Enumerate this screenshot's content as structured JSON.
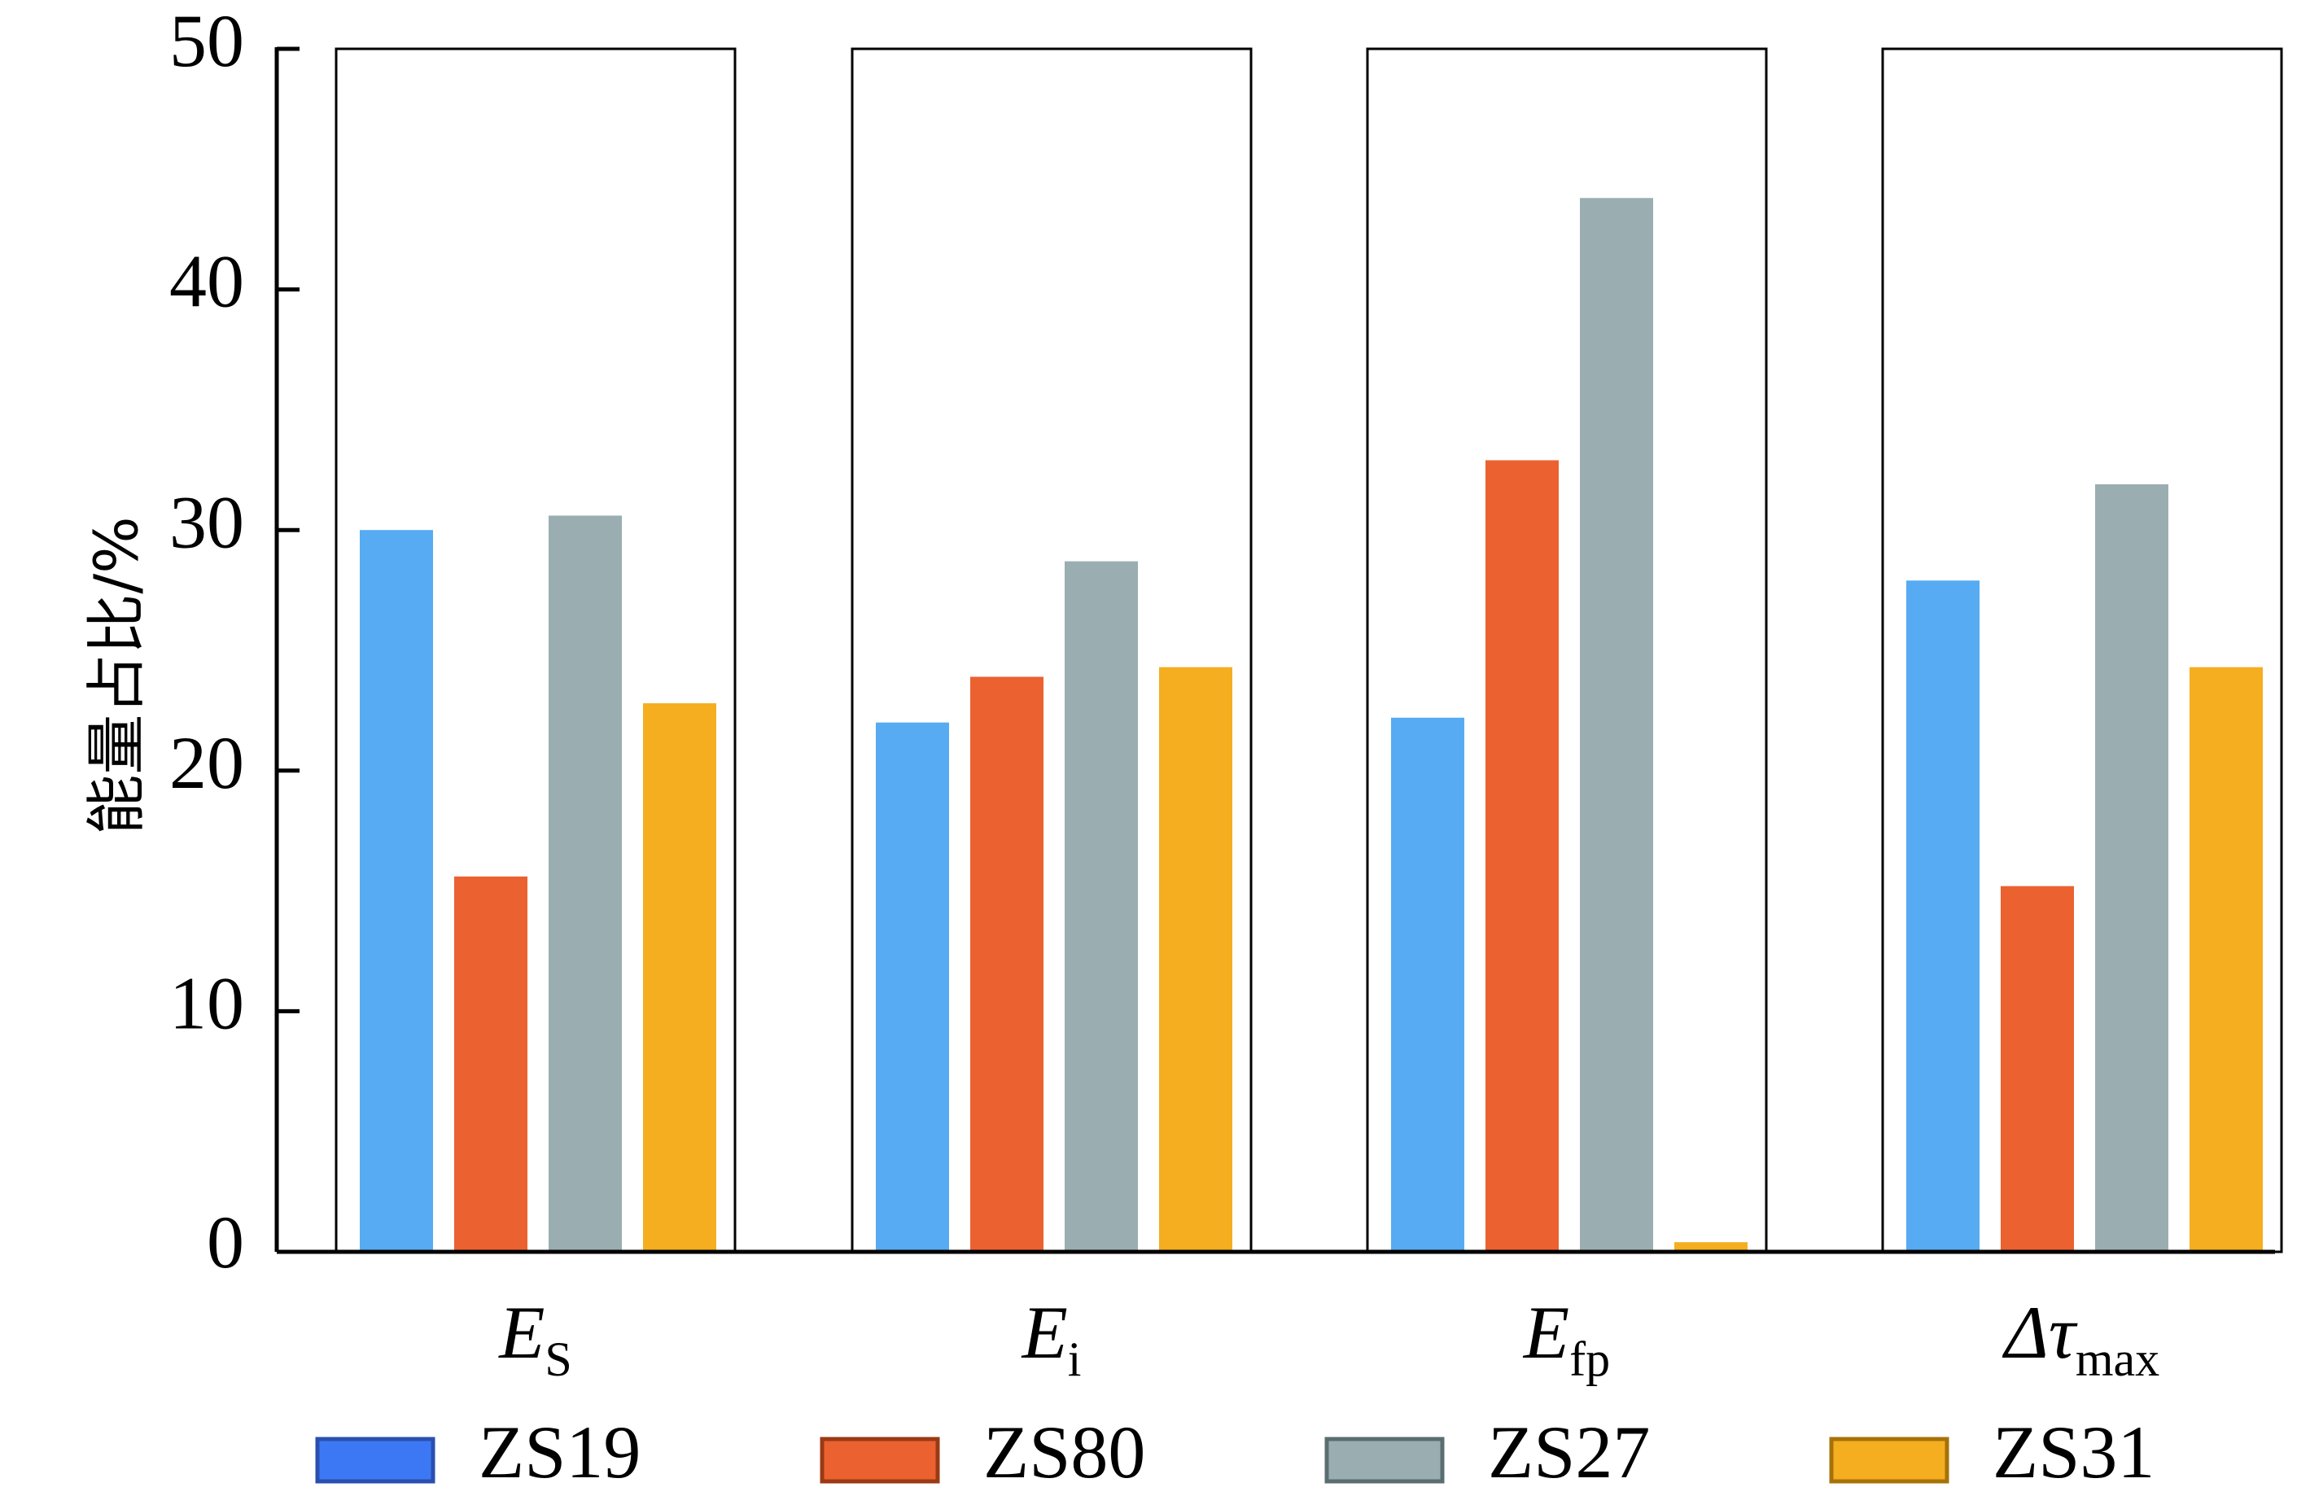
{
  "chart_data": {
    "type": "bar",
    "ylabel": "能量占比/%",
    "xlabel": "",
    "ylim": [
      0,
      50
    ],
    "yticks": [
      0,
      10,
      20,
      30,
      40,
      50
    ],
    "grid": false,
    "legend_position": "bottom",
    "categories": [
      {
        "main": "E",
        "sub": "S"
      },
      {
        "main": "E",
        "sub": "i"
      },
      {
        "main": "E",
        "sub": "fp"
      },
      {
        "main": "Δτ",
        "sub": "max"
      }
    ],
    "series": [
      {
        "name": "ZS19",
        "color": "#56abf2",
        "legend_fill": "#3d78f4",
        "legend_stroke": "#2a4fb0",
        "values": [
          30.0,
          22.0,
          22.2,
          27.9
        ]
      },
      {
        "name": "ZS80",
        "color": "#eb6130",
        "legend_fill": "#eb6130",
        "legend_stroke": "#9a3a14",
        "values": [
          15.6,
          23.9,
          32.9,
          15.2
        ]
      },
      {
        "name": "ZS27",
        "color": "#9aaeb2",
        "legend_fill": "#9aaeb2",
        "legend_stroke": "#5a6e72",
        "values": [
          30.6,
          28.7,
          43.8,
          31.9
        ]
      },
      {
        "name": "ZS31",
        "color": "#f5ae1f",
        "legend_fill": "#f5ae1f",
        "legend_stroke": "#a67208",
        "values": [
          22.8,
          24.3,
          0.4,
          24.3
        ]
      }
    ]
  }
}
